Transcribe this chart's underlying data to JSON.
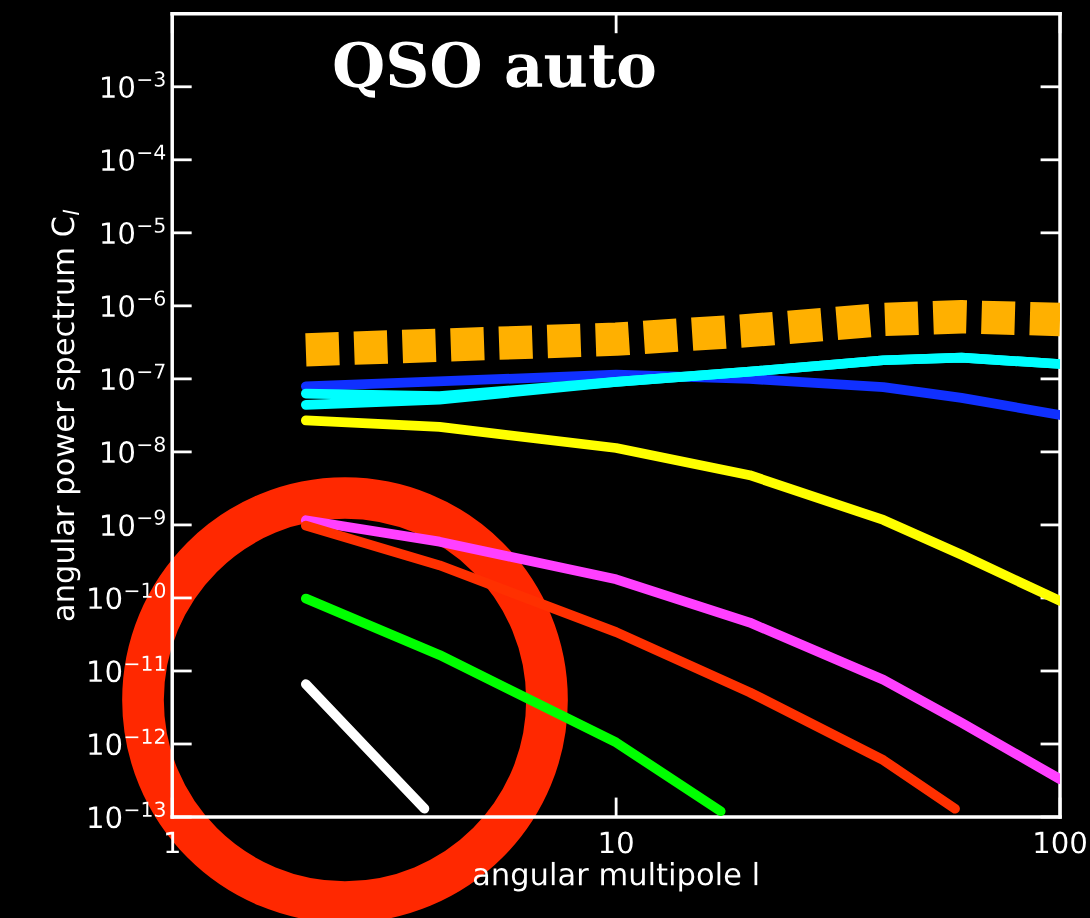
{
  "chart_data": {
    "type": "line",
    "title": "QSO auto",
    "xlabel": "angular multipole l",
    "ylabel": "angular power spectrum C$_{l}$",
    "log": "xy",
    "grid": false,
    "legend": false,
    "xlim": [
      1,
      100
    ],
    "xticks": [
      1,
      10,
      100
    ],
    "ylim": [
      1e-13,
      0.01
    ],
    "yticks": [
      {
        "value": 1e-13,
        "label": "10$^{−13}$"
      },
      {
        "value": 1e-12,
        "label": "10$^{−12}$"
      },
      {
        "value": 1e-11,
        "label": "10$^{−11}$"
      },
      {
        "value": 1e-10,
        "label": "10$^{−10}$"
      },
      {
        "value": 1e-09,
        "label": "10$^{−9}$"
      },
      {
        "value": 1e-08,
        "label": "10$^{−8}$"
      },
      {
        "value": 1e-07,
        "label": "10$^{−7}$"
      },
      {
        "value": 1e-06,
        "label": "10$^{−6}$"
      },
      {
        "value": 1e-05,
        "label": "10$^{−5}$"
      },
      {
        "value": 0.0001,
        "label": "10$^{−4}$"
      },
      {
        "value": 0.001,
        "label": "10$^{−3}$"
      }
    ],
    "series": [
      {
        "color": "#ffb000",
        "line_style": "dashed",
        "x": [
          2,
          10,
          20,
          40,
          60,
          100
        ],
        "values": [
          2.5e-07,
          3.5e-07,
          4.6e-07,
          6.5e-07,
          7.1e-07,
          6.5e-07
        ]
      },
      {
        "color": "#1030ff",
        "line_style": "solid",
        "x": [
          2,
          10,
          20,
          40,
          60,
          100
        ],
        "values": [
          7.9e-08,
          1.14e-07,
          1e-07,
          7.7e-08,
          5.5e-08,
          3.2e-08
        ]
      },
      {
        "color": "#00ffff",
        "line_style": "solid",
        "x": [
          2,
          4,
          10,
          20,
          40,
          60,
          100
        ],
        "values": [
          6.3e-08,
          5.8e-08,
          9.1e-08,
          1.26e-07,
          1.8e-07,
          1.95e-07,
          1.6e-07
        ]
      },
      {
        "color": "#00ffff",
        "line_style": "solid",
        "x": [
          2,
          4,
          10,
          20,
          40,
          60,
          100
        ],
        "values": [
          4.4e-08,
          5.2e-08,
          9.1e-08,
          1.26e-07,
          1.8e-07,
          1.95e-07,
          1.6e-07
        ]
      },
      {
        "color": "#ffff00",
        "line_style": "solid",
        "x": [
          2,
          4,
          10,
          20,
          40,
          60,
          100
        ],
        "values": [
          2.7e-08,
          2.2e-08,
          1.13e-08,
          4.8e-09,
          1.17e-09,
          3.9e-10,
          9.1e-11
        ]
      },
      {
        "color": "#ff40ff",
        "line_style": "solid",
        "x": [
          2,
          4,
          10,
          20,
          40,
          60,
          100
        ],
        "values": [
          1.16e-09,
          5.9e-10,
          1.8e-10,
          4.6e-11,
          7.6e-12,
          1.95e-12,
          3.3e-13
        ]
      },
      {
        "color": "#ff3000",
        "line_style": "solid",
        "x": [
          2,
          4,
          10,
          20,
          40,
          58
        ],
        "values": [
          9.8e-10,
          2.8e-10,
          3.4e-11,
          5.1e-12,
          6e-13,
          1.3e-13
        ]
      },
      {
        "color": "#00ff00",
        "line_style": "solid",
        "x": [
          2,
          4,
          10,
          17.2
        ],
        "values": [
          9.8e-11,
          1.66e-11,
          1.05e-12,
          1.2e-13
        ]
      },
      {
        "color": "#ffffff",
        "line_style": "solid",
        "x": [
          2,
          3.7
        ],
        "values": [
          6.6e-12,
          1.3e-13
        ]
      }
    ]
  }
}
